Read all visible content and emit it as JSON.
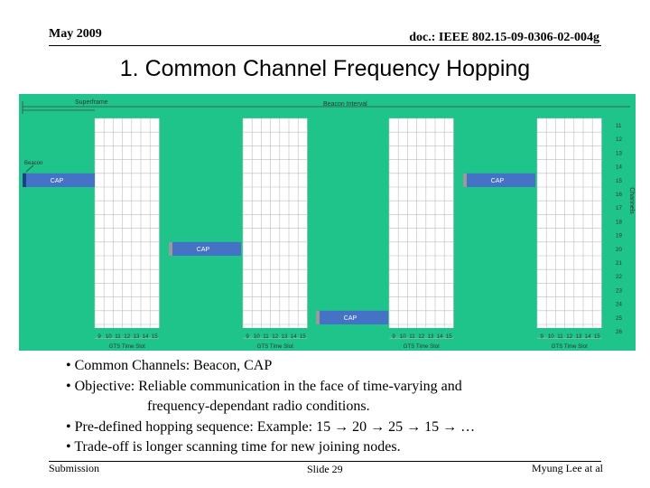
{
  "header": {
    "date": "May 2009",
    "doc": "doc.: IEEE 802.15-09-0306-02-004g"
  },
  "title": "1. Common Channel Frequency Hopping",
  "figure": {
    "superframe_label": "Superframe",
    "beacon_interval_label": "Beacon Interval",
    "beacon_label": "Beacon",
    "channels_axis_label": "Channels",
    "channels": [
      "11",
      "12",
      "13",
      "14",
      "15",
      "16",
      "17",
      "18",
      "19",
      "20",
      "21",
      "22",
      "23",
      "24",
      "25",
      "26"
    ],
    "slot_numbers": [
      "9",
      "10",
      "11",
      "12",
      "13",
      "14",
      "15"
    ],
    "gts_label": "GTS Time Slot",
    "cap_label": "CAP",
    "hop_channels": [
      "15",
      "20",
      "25",
      "15"
    ],
    "colors": {
      "background": "#1fc48a",
      "grid_area": "#ffffff",
      "grid_line": "#bdbdbd",
      "cap_bar": "#4472c4",
      "cap_edge": "#9a9a9a"
    }
  },
  "bullets": [
    {
      "text": "• Common Channels: Beacon, CAP"
    },
    {
      "text": "• Objective: Reliable communication in the face of time-varying and"
    },
    {
      "text": "frequency-dependant radio conditions."
    },
    {
      "text": "• Pre-defined hopping sequence:  Example: 15 → 20 → 25 → 15 → …"
    },
    {
      "text": "• Trade-off is longer scanning time for new joining nodes."
    }
  ],
  "footer": {
    "left": "Submission",
    "center": "Slide 29",
    "right": "Myung Lee at al"
  }
}
